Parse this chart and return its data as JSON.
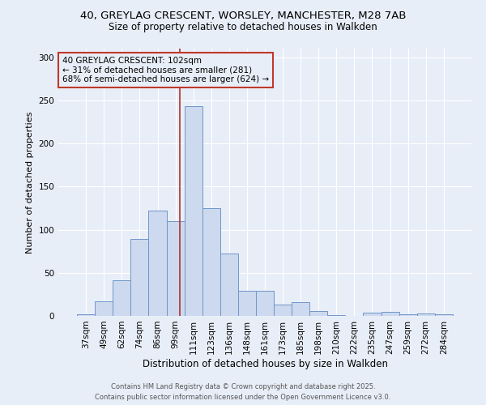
{
  "title_line1": "40, GREYLAG CRESCENT, WORSLEY, MANCHESTER, M28 7AB",
  "title_line2": "Size of property relative to detached houses in Walkden",
  "xlabel": "Distribution of detached houses by size in Walkden",
  "ylabel": "Number of detached properties",
  "categories": [
    "37sqm",
    "49sqm",
    "62sqm",
    "74sqm",
    "86sqm",
    "99sqm",
    "111sqm",
    "123sqm",
    "136sqm",
    "148sqm",
    "161sqm",
    "173sqm",
    "185sqm",
    "198sqm",
    "210sqm",
    "222sqm",
    "235sqm",
    "247sqm",
    "259sqm",
    "272sqm",
    "284sqm"
  ],
  "values": [
    2,
    17,
    41,
    89,
    122,
    110,
    243,
    125,
    72,
    29,
    29,
    13,
    16,
    6,
    1,
    0,
    4,
    5,
    2,
    3,
    2
  ],
  "bar_color": "#ccd9ee",
  "bar_edge_color": "#7096c8",
  "vline_x": 5.25,
  "vline_color": "#b03030",
  "annotation_text": "40 GREYLAG CRESCENT: 102sqm\n← 31% of detached houses are smaller (281)\n68% of semi-detached houses are larger (624) →",
  "annotation_box_color": "#c0392b",
  "ylim": [
    0,
    310
  ],
  "yticks": [
    0,
    50,
    100,
    150,
    200,
    250,
    300
  ],
  "footer_line1": "Contains HM Land Registry data © Crown copyright and database right 2025.",
  "footer_line2": "Contains public sector information licensed under the Open Government Licence v3.0.",
  "bg_color": "#e8eef8"
}
